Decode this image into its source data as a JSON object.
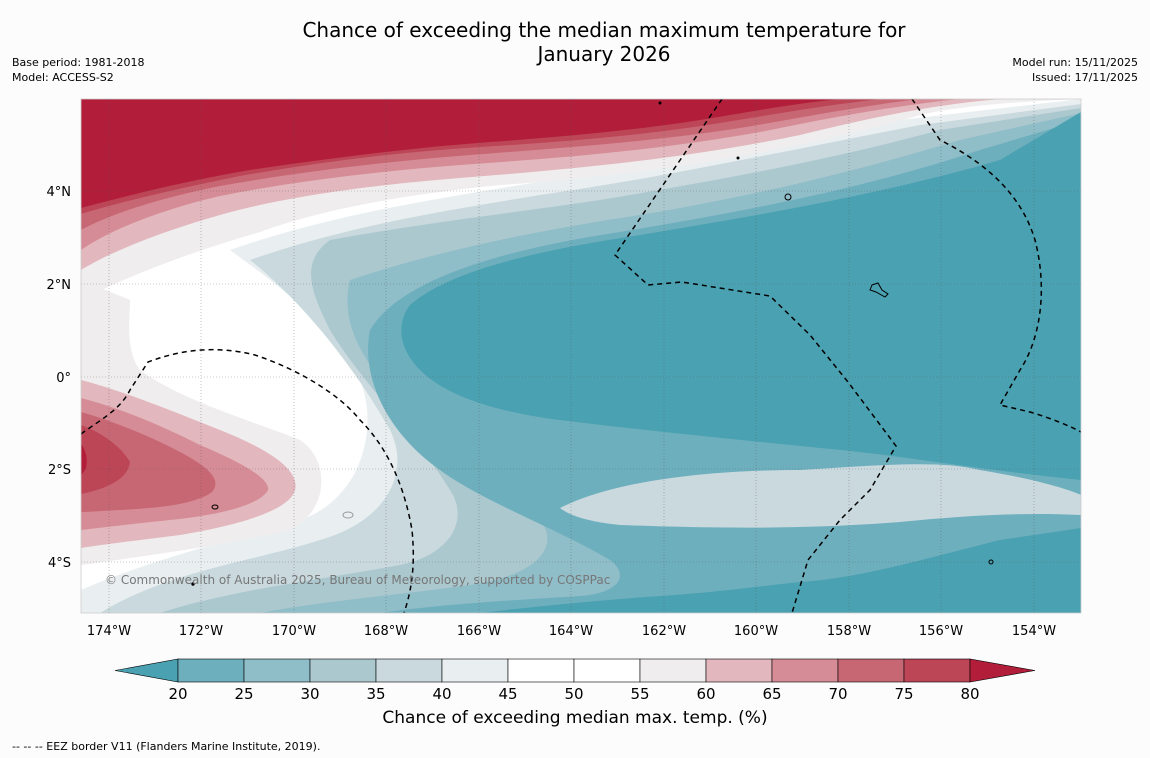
{
  "title": {
    "line1": "Chance of exceeding the median maximum temperature for",
    "line2": "January 2026"
  },
  "meta_left": {
    "base_period": "Base period: 1981-2018",
    "model": "Model: ACCESS-S2"
  },
  "meta_right": {
    "model_run": "Model run: 15/11/2025",
    "issued": "Issued: 17/11/2025"
  },
  "map": {
    "lon_labels": [
      "174°W",
      "172°W",
      "170°W",
      "168°W",
      "166°W",
      "164°W",
      "162°W",
      "160°W",
      "158°W",
      "156°W",
      "154°W"
    ],
    "lat_labels": [
      "4°N",
      "2°N",
      "0°",
      "2°S",
      "4°S"
    ],
    "copyright": "© Commonwealth of Australia 2025, Bureau of Meteorology, supported by COSPPac"
  },
  "colorbar": {
    "ticks": [
      "20",
      "25",
      "30",
      "35",
      "40",
      "45",
      "50",
      "55",
      "60",
      "65",
      "70",
      "75",
      "80"
    ],
    "colors": [
      "#4aa1b1",
      "#6eafbe",
      "#8fbdc8",
      "#abc8cf",
      "#c9d9de",
      "#e9eff1",
      "#ffffff",
      "#ffffff",
      "#efedee",
      "#e2b7bd",
      "#d68c96",
      "#c86774",
      "#bc4556",
      "#b21e3a"
    ],
    "title": "Chance of exceeding median max. temp. (%)"
  },
  "footnote": "--  --  -- EEZ border V11 (Flanders Marine Institute, 2019)."
}
